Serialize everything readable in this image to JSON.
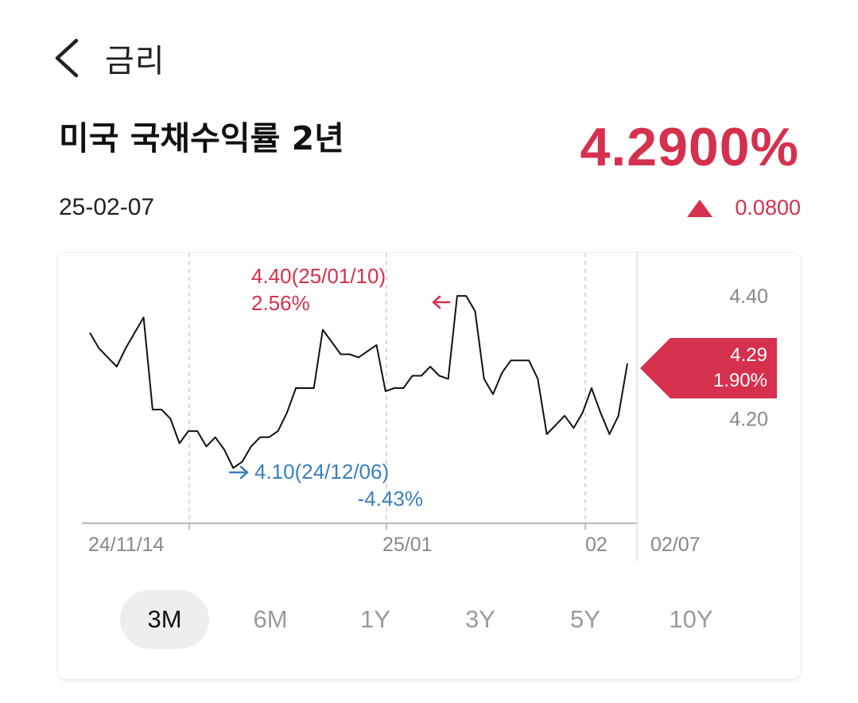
{
  "nav": {
    "title": "금리"
  },
  "header": {
    "title": "미국 국채수익률 2년",
    "date": "25-02-07",
    "price": "4.2900%",
    "change": "0.0800"
  },
  "colors": {
    "up": "#d5304d",
    "down": "#3a7ec3",
    "line": "#111111",
    "grid": "#cccccc"
  },
  "chart_data": {
    "type": "line",
    "x_labels": [
      "24/11/14",
      "25/01",
      "02",
      "02/07"
    ],
    "y_ticks": [
      "4.40",
      "4.20"
    ],
    "ylim": [
      4.03,
      4.47
    ],
    "current": {
      "value": "4.29",
      "pct": "1.90%"
    },
    "high": {
      "label": "4.40(25/01/10)",
      "pct": "2.56%"
    },
    "low": {
      "label": "4.10(24/12/06)",
      "pct": "-4.43%"
    },
    "series": [
      {
        "values": [
          4.34,
          4.315,
          4.3,
          4.285,
          4.315,
          4.34,
          4.365,
          4.215,
          4.215,
          4.2,
          4.16,
          4.18,
          4.18,
          4.155,
          4.17,
          4.15,
          4.12,
          4.13,
          4.155,
          4.17,
          4.17,
          4.18,
          4.21,
          4.25,
          4.25,
          4.25,
          4.345,
          4.325,
          4.305,
          4.305,
          4.3,
          4.31,
          4.32,
          4.245,
          4.25,
          4.25,
          4.27,
          4.27,
          4.285,
          4.27,
          4.265,
          4.4,
          4.4,
          4.375,
          4.265,
          4.24,
          4.275,
          4.295,
          4.295,
          4.295,
          4.265,
          4.175,
          4.19,
          4.205,
          4.185,
          4.21,
          4.25,
          4.21,
          4.175,
          4.205,
          4.29
        ]
      }
    ]
  },
  "tabs": [
    "3M",
    "6M",
    "1Y",
    "3Y",
    "5Y",
    "10Y"
  ],
  "active_tab": "3M"
}
